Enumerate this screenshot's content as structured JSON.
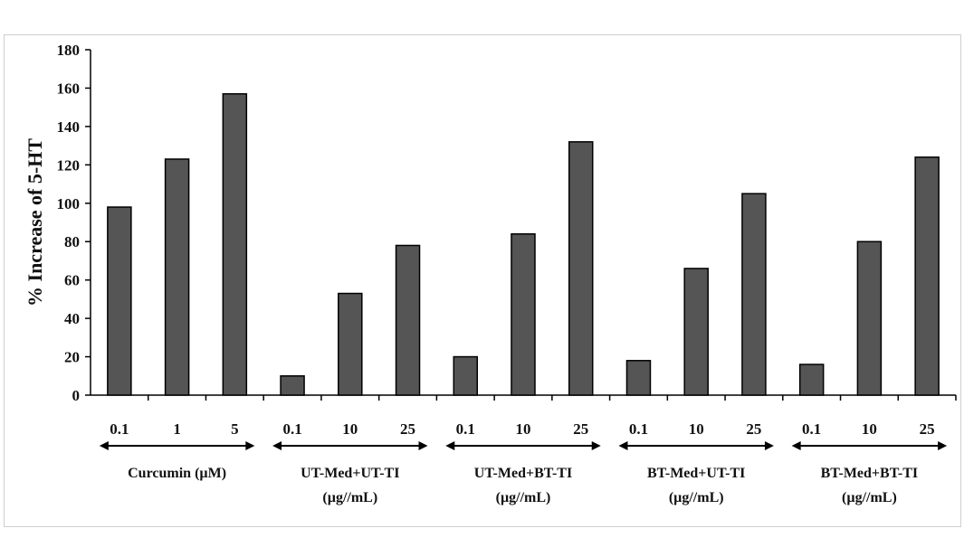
{
  "chart_data": {
    "type": "bar",
    "ylabel": "% Increase of 5-HT",
    "ylim": [
      0,
      180
    ],
    "yticks": [
      0,
      20,
      40,
      60,
      80,
      100,
      120,
      140,
      160,
      180
    ],
    "bar_color": "#555555",
    "groups": [
      {
        "label_line1": "Curcumin (µM)",
        "label_line2": "",
        "categories": [
          "0.1",
          "1",
          "5"
        ],
        "values": [
          98,
          123,
          157
        ]
      },
      {
        "label_line1": "UT-Med+UT-TI",
        "label_line2": "(µg//mL)",
        "categories": [
          "0.1",
          "10",
          "25"
        ],
        "values": [
          10,
          53,
          78
        ]
      },
      {
        "label_line1": "UT-Med+BT-TI",
        "label_line2": "(µg//mL)",
        "categories": [
          "0.1",
          "10",
          "25"
        ],
        "values": [
          20,
          84,
          132
        ]
      },
      {
        "label_line1": "BT-Med+UT-TI",
        "label_line2": "(µg//mL)",
        "categories": [
          "0.1",
          "10",
          "25"
        ],
        "values": [
          18,
          66,
          105
        ]
      },
      {
        "label_line1": "BT-Med+BT-TI",
        "label_line2": "(µg//mL)",
        "categories": [
          "0.1",
          "10",
          "25"
        ],
        "values": [
          16,
          80,
          124
        ]
      }
    ]
  }
}
